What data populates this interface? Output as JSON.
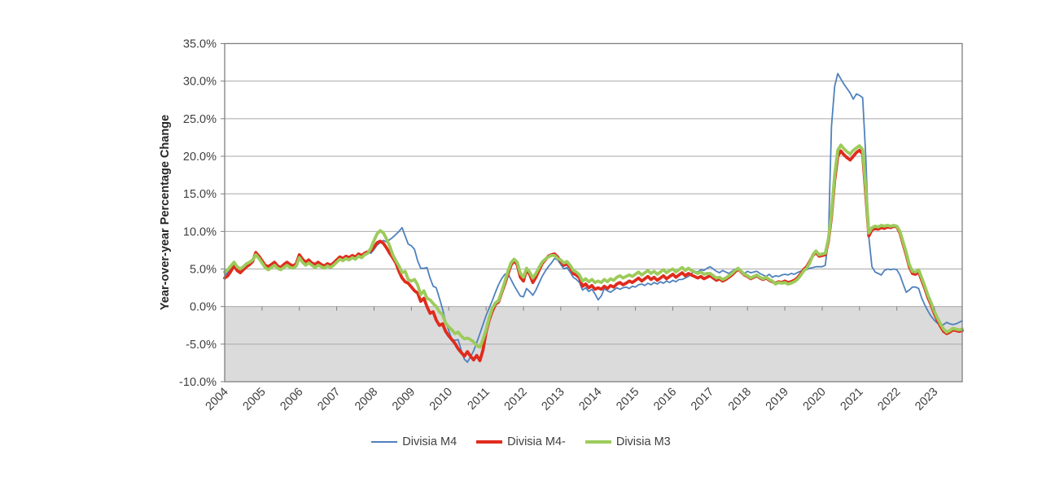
{
  "figure": {
    "y_axis_title": "Year-over-year Percentage Change"
  },
  "styles": {
    "series_blue": "#4F81BD",
    "series_red": "#E02B1D",
    "series_green": "#9CCB5B",
    "grid_color": "#A8A8A8",
    "border_color": "#808080",
    "shade_color": "#DBDBDB",
    "text_color": "#3F3F3F"
  },
  "chart_data": {
    "type": "line",
    "title": "",
    "xlabel": "",
    "ylabel": "Year-over-year Percentage Change",
    "x_start": "2004-01",
    "x_end": "2023-10",
    "frequency": "monthly",
    "ylim": [
      -10,
      35
    ],
    "y_tick_step": 5,
    "grid": "horizontal",
    "negative_region_shaded": true,
    "legend_position": "bottom",
    "x_tick_labels": [
      "2004",
      "2005",
      "2006",
      "2007",
      "2008",
      "2009",
      "2010",
      "2011",
      "2012",
      "2013",
      "2014",
      "2015",
      "2016",
      "2017",
      "2018",
      "2019",
      "2020",
      "2021",
      "2022",
      "2023"
    ],
    "y_tick_values": [
      35,
      30,
      25,
      20,
      15,
      10,
      5,
      0,
      -5,
      -10
    ],
    "y_tick_labels": [
      "35.0%",
      "30.0%",
      "25.0%",
      "20.0%",
      "15.0%",
      "10.0%",
      "5.0%",
      "0.0%",
      "-5.0%",
      "-10.0%"
    ],
    "series": [
      {
        "name": "Divisia M4",
        "color": "#4F81BD",
        "width": 1.8,
        "values": [
          4.2,
          4.5,
          5.0,
          5.6,
          5.0,
          4.7,
          5.1,
          5.5,
          5.7,
          6.1,
          7.0,
          6.5,
          5.9,
          5.4,
          5.1,
          5.4,
          5.7,
          5.2,
          5.0,
          5.4,
          5.7,
          5.4,
          5.2,
          5.5,
          6.7,
          6.1,
          5.7,
          6.0,
          5.6,
          5.4,
          5.7,
          5.4,
          5.2,
          5.5,
          5.3,
          5.6,
          6.0,
          6.4,
          6.2,
          6.5,
          6.3,
          6.6,
          6.4,
          6.8,
          6.6,
          7.0,
          7.2,
          7.1,
          7.6,
          8.2,
          8.5,
          8.8,
          8.6,
          8.9,
          9.2,
          9.6,
          10.0,
          10.5,
          9.4,
          8.3,
          8.1,
          7.6,
          6.1,
          5.1,
          5.1,
          5.2,
          3.8,
          2.7,
          2.5,
          1.1,
          -0.3,
          -2.0,
          -3.2,
          -4.3,
          -4.5,
          -4.4,
          -5.8,
          -7.0,
          -7.4,
          -6.7,
          -5.9,
          -4.8,
          -3.6,
          -2.4,
          -1.2,
          -0.2,
          0.8,
          1.9,
          2.9,
          3.7,
          4.3,
          4.4,
          3.6,
          2.8,
          2.1,
          1.4,
          1.3,
          2.4,
          2.0,
          1.5,
          2.2,
          3.1,
          4.0,
          4.7,
          5.3,
          5.8,
          6.4,
          6.2,
          5.6,
          5.0,
          5.2,
          4.6,
          3.9,
          3.6,
          3.2,
          2.2,
          2.5,
          2.0,
          2.3,
          1.7,
          0.9,
          1.4,
          2.4,
          2.1,
          1.9,
          2.2,
          2.5,
          2.3,
          2.5,
          2.6,
          2.4,
          2.7,
          2.6,
          2.9,
          3.0,
          2.8,
          3.1,
          2.9,
          3.2,
          3.0,
          3.3,
          3.1,
          3.4,
          3.2,
          3.5,
          3.3,
          3.6,
          3.6,
          3.8,
          4.0,
          4.4,
          4.7,
          4.6,
          4.9,
          4.8,
          5.1,
          5.3,
          5.0,
          4.7,
          4.5,
          4.8,
          4.6,
          4.4,
          4.7,
          5.0,
          4.9,
          4.6,
          4.4,
          4.7,
          4.5,
          4.6,
          4.7,
          4.4,
          4.2,
          4.0,
          4.3,
          3.9,
          4.1,
          4.0,
          4.2,
          4.3,
          4.2,
          4.4,
          4.3,
          4.5,
          4.7,
          4.8,
          4.9,
          5.1,
          5.2,
          5.3,
          5.3,
          5.3,
          5.5,
          9.0,
          24.0,
          29.3,
          31.0,
          30.3,
          29.6,
          29.0,
          28.4,
          27.6,
          28.3,
          28.1,
          27.8,
          20.0,
          9.2,
          5.3,
          4.6,
          4.4,
          4.2,
          4.8,
          5.0,
          4.9,
          5.0,
          4.9,
          4.2,
          3.0,
          1.9,
          2.2,
          2.6,
          2.6,
          2.4,
          1.1,
          0.2,
          -0.6,
          -1.3,
          -1.8,
          -2.2,
          -2.5,
          -2.4,
          -2.1,
          -2.3,
          -2.4,
          -2.3,
          -2.1,
          -1.9
        ]
      },
      {
        "name": "Divisia M4-",
        "color": "#E02B1D",
        "width": 3.8,
        "values": [
          3.8,
          4.1,
          4.7,
          5.4,
          4.8,
          4.5,
          4.9,
          5.3,
          5.6,
          6.0,
          7.2,
          6.7,
          6.1,
          5.5,
          5.3,
          5.6,
          5.9,
          5.4,
          5.2,
          5.6,
          5.9,
          5.6,
          5.4,
          5.7,
          6.9,
          6.3,
          5.9,
          6.2,
          5.8,
          5.6,
          5.9,
          5.6,
          5.4,
          5.7,
          5.5,
          5.8,
          6.2,
          6.6,
          6.4,
          6.7,
          6.5,
          6.8,
          6.6,
          7.0,
          6.8,
          7.1,
          7.3,
          7.4,
          7.9,
          8.5,
          8.7,
          8.4,
          7.8,
          7.1,
          6.5,
          5.8,
          4.7,
          3.8,
          3.3,
          3.1,
          2.6,
          2.1,
          1.8,
          0.7,
          1.1,
          0.0,
          -0.9,
          -0.7,
          -1.8,
          -2.5,
          -2.3,
          -3.3,
          -3.9,
          -4.4,
          -4.9,
          -5.6,
          -6.1,
          -6.6,
          -6.0,
          -6.6,
          -7.1,
          -6.5,
          -7.2,
          -5.8,
          -3.4,
          -1.8,
          -0.6,
          0.3,
          0.6,
          1.8,
          3.0,
          4.3,
          5.5,
          6.1,
          5.6,
          3.9,
          3.4,
          4.9,
          4.3,
          3.2,
          3.9,
          4.8,
          5.7,
          6.2,
          6.7,
          6.9,
          7.0,
          6.6,
          6.0,
          5.5,
          5.7,
          5.2,
          4.4,
          4.2,
          3.8,
          2.7,
          3.0,
          2.5,
          2.8,
          2.3,
          2.5,
          2.3,
          2.7,
          2.4,
          2.8,
          2.6,
          3.0,
          3.2,
          2.9,
          3.1,
          3.4,
          3.2,
          3.5,
          3.8,
          3.4,
          3.7,
          4.0,
          3.6,
          3.9,
          3.5,
          3.8,
          4.1,
          3.7,
          4.0,
          4.3,
          3.9,
          4.2,
          4.5,
          4.1,
          4.4,
          4.2,
          4.0,
          3.8,
          4.0,
          3.7,
          3.9,
          4.1,
          3.8,
          3.5,
          3.7,
          3.4,
          3.6,
          3.9,
          4.2,
          4.6,
          5.0,
          4.6,
          4.2,
          4.0,
          3.7,
          3.9,
          4.1,
          3.8,
          3.6,
          3.8,
          3.5,
          3.3,
          3.1,
          3.3,
          3.2,
          3.4,
          3.2,
          3.3,
          3.5,
          3.8,
          4.3,
          4.9,
          5.3,
          6.0,
          6.8,
          7.2,
          6.7,
          6.8,
          6.9,
          8.7,
          12.0,
          16.8,
          20.0,
          20.7,
          20.2,
          19.8,
          19.5,
          20.0,
          20.5,
          20.8,
          20.3,
          15.0,
          9.4,
          10.2,
          10.4,
          10.3,
          10.5,
          10.4,
          10.6,
          10.5,
          10.7,
          10.6,
          9.8,
          8.3,
          6.9,
          5.3,
          4.4,
          4.3,
          4.6,
          3.5,
          2.4,
          1.2,
          0.2,
          -0.9,
          -1.8,
          -2.6,
          -3.3,
          -3.6,
          -3.4,
          -3.1,
          -3.2,
          -3.3,
          -3.2
        ]
      },
      {
        "name": "Divisia M3",
        "color": "#9CCB5B",
        "width": 3.8,
        "values": [
          4.6,
          4.9,
          5.4,
          5.9,
          5.3,
          5.0,
          5.3,
          5.7,
          5.9,
          6.2,
          6.9,
          6.4,
          5.8,
          5.2,
          4.9,
          5.2,
          5.5,
          5.1,
          4.9,
          5.2,
          5.5,
          5.2,
          5.1,
          5.4,
          6.5,
          5.9,
          5.5,
          5.8,
          5.5,
          5.2,
          5.5,
          5.3,
          5.1,
          5.4,
          5.2,
          5.5,
          5.9,
          6.3,
          6.1,
          6.4,
          6.2,
          6.5,
          6.3,
          6.7,
          6.5,
          6.9,
          7.1,
          7.8,
          8.8,
          9.7,
          10.1,
          9.8,
          9.0,
          8.1,
          6.9,
          6.1,
          5.4,
          4.5,
          4.7,
          3.6,
          3.4,
          3.6,
          2.9,
          1.6,
          2.1,
          1.1,
          0.9,
          0.4,
          0.0,
          -0.7,
          -1.1,
          -2.2,
          -2.7,
          -3.1,
          -3.6,
          -3.4,
          -3.9,
          -4.3,
          -4.2,
          -4.4,
          -4.7,
          -5.2,
          -5.4,
          -4.4,
          -3.1,
          -1.5,
          -0.2,
          0.5,
          0.8,
          2.0,
          3.3,
          4.7,
          5.8,
          6.3,
          5.9,
          4.4,
          3.9,
          5.1,
          4.6,
          3.8,
          4.4,
          5.2,
          5.9,
          6.3,
          6.6,
          6.8,
          6.8,
          6.4,
          6.2,
          5.8,
          6.0,
          5.5,
          4.8,
          4.6,
          4.2,
          3.4,
          3.7,
          3.3,
          3.6,
          3.2,
          3.4,
          3.2,
          3.6,
          3.3,
          3.7,
          3.5,
          3.9,
          4.1,
          3.8,
          4.0,
          4.2,
          4.0,
          4.3,
          4.6,
          4.2,
          4.5,
          4.8,
          4.4,
          4.7,
          4.3,
          4.6,
          4.9,
          4.5,
          4.8,
          5.0,
          4.6,
          4.9,
          5.2,
          4.8,
          5.1,
          4.8,
          4.6,
          4.4,
          4.6,
          4.3,
          4.4,
          4.4,
          4.1,
          3.8,
          3.9,
          3.6,
          3.8,
          4.1,
          4.4,
          4.8,
          5.1,
          4.7,
          4.3,
          4.1,
          3.8,
          4.0,
          4.2,
          3.9,
          3.7,
          3.9,
          3.6,
          3.4,
          3.0,
          3.2,
          3.1,
          3.2,
          3.0,
          3.1,
          3.3,
          3.6,
          4.1,
          4.7,
          5.1,
          5.8,
          6.9,
          7.4,
          6.9,
          7.0,
          7.1,
          9.0,
          12.5,
          17.5,
          20.8,
          21.5,
          21.0,
          20.6,
          20.3,
          20.8,
          21.1,
          21.4,
          20.9,
          15.8,
          9.8,
          10.5,
          10.7,
          10.6,
          10.8,
          10.7,
          10.8,
          10.7,
          10.8,
          10.7,
          10.0,
          8.6,
          7.2,
          5.6,
          4.7,
          4.6,
          4.9,
          3.8,
          2.7,
          1.5,
          0.5,
          -0.6,
          -1.5,
          -2.3,
          -3.0,
          -3.4,
          -3.2,
          -2.9,
          -3.0,
          -3.1,
          -3.0
        ]
      }
    ]
  }
}
